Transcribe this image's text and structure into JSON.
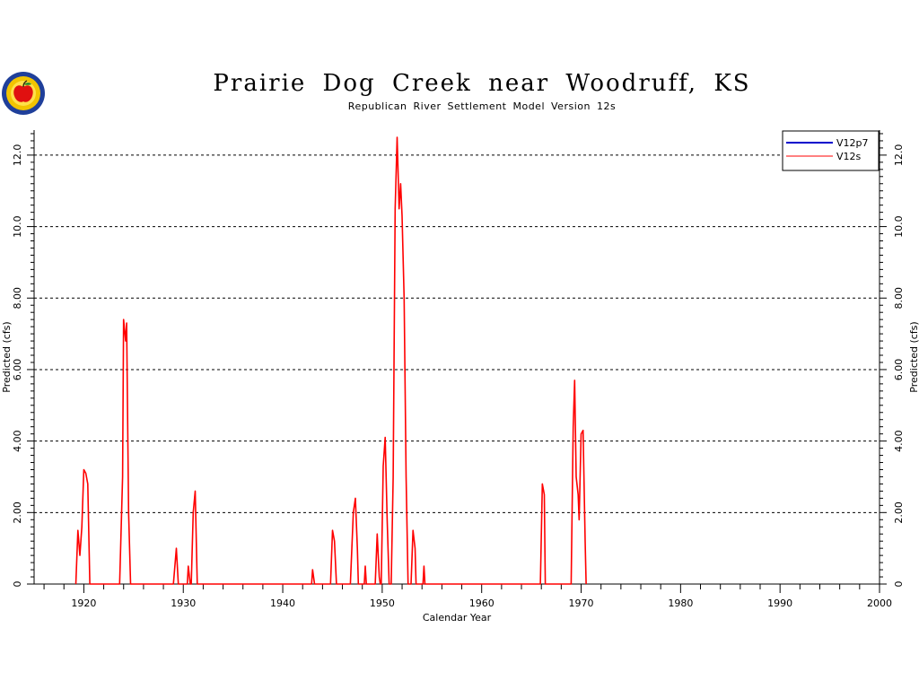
{
  "chart_data": {
    "type": "line",
    "title": "Prairie Dog Creek near Woodruff, KS",
    "subtitle": "Republican River Settlement Model Version 12s",
    "xlabel": "Calendar Year",
    "ylabel": "Predicted  (cfs)",
    "xlim": [
      1915,
      2000
    ],
    "ylim": [
      0,
      12.7
    ],
    "x_ticks": [
      1920,
      1930,
      1940,
      1950,
      1960,
      1970,
      1980,
      1990,
      2000
    ],
    "y_ticks": [
      0,
      2,
      4,
      6,
      8,
      10,
      12
    ],
    "y_tick_labels": [
      "0",
      "2.00",
      "4.00",
      "6.00",
      "8.00",
      "10.0",
      "12.0"
    ],
    "grid": "horizontal dashed",
    "legend_position": "top-right",
    "series": [
      {
        "name": "V12p7",
        "color": "#0000cc",
        "points": []
      },
      {
        "name": "V12s",
        "color": "#ff0000",
        "points": [
          [
            1919.2,
            0
          ],
          [
            1919.4,
            1.5
          ],
          [
            1919.6,
            0.8
          ],
          [
            1919.8,
            1.6
          ],
          [
            1920.0,
            3.2
          ],
          [
            1920.2,
            3.1
          ],
          [
            1920.4,
            2.8
          ],
          [
            1920.6,
            0
          ],
          [
            1923.6,
            0
          ],
          [
            1923.9,
            3.0
          ],
          [
            1924.0,
            7.4
          ],
          [
            1924.2,
            6.8
          ],
          [
            1924.3,
            7.3
          ],
          [
            1924.5,
            2.0
          ],
          [
            1924.7,
            0
          ],
          [
            1929.0,
            0
          ],
          [
            1929.3,
            1.0
          ],
          [
            1929.5,
            0
          ],
          [
            1930.4,
            0
          ],
          [
            1930.5,
            0.5
          ],
          [
            1930.7,
            0
          ],
          [
            1930.8,
            0
          ],
          [
            1931.0,
            2.0
          ],
          [
            1931.2,
            2.6
          ],
          [
            1931.4,
            0
          ],
          [
            1942.9,
            0
          ],
          [
            1943.0,
            0.4
          ],
          [
            1943.2,
            0
          ],
          [
            1944.8,
            0
          ],
          [
            1945.0,
            1.5
          ],
          [
            1945.2,
            1.2
          ],
          [
            1945.4,
            0
          ],
          [
            1946.8,
            0
          ],
          [
            1947.1,
            2.0
          ],
          [
            1947.3,
            2.4
          ],
          [
            1947.5,
            1.0
          ],
          [
            1947.6,
            0
          ],
          [
            1948.2,
            0
          ],
          [
            1948.3,
            0.5
          ],
          [
            1948.4,
            0
          ],
          [
            1949.3,
            0
          ],
          [
            1949.5,
            1.4
          ],
          [
            1949.7,
            0.2
          ],
          [
            1949.8,
            0
          ],
          [
            1949.9,
            0
          ],
          [
            1950.1,
            3.3
          ],
          [
            1950.3,
            4.1
          ],
          [
            1950.5,
            1.8
          ],
          [
            1950.7,
            0
          ],
          [
            1950.9,
            0
          ],
          [
            1951.1,
            3.0
          ],
          [
            1951.3,
            10.5
          ],
          [
            1951.5,
            12.5
          ],
          [
            1951.7,
            10.5
          ],
          [
            1951.85,
            11.2
          ],
          [
            1952.0,
            10.3
          ],
          [
            1952.2,
            8.0
          ],
          [
            1952.4,
            3.0
          ],
          [
            1952.6,
            0
          ],
          [
            1952.9,
            0
          ],
          [
            1953.1,
            1.5
          ],
          [
            1953.3,
            1.0
          ],
          [
            1953.4,
            0
          ],
          [
            1954.1,
            0
          ],
          [
            1954.2,
            0.5
          ],
          [
            1954.3,
            0
          ],
          [
            1965.9,
            0
          ],
          [
            1966.1,
            2.8
          ],
          [
            1966.3,
            2.5
          ],
          [
            1966.4,
            0
          ],
          [
            1969.0,
            0
          ],
          [
            1969.2,
            4.4
          ],
          [
            1969.35,
            5.7
          ],
          [
            1969.5,
            3.0
          ],
          [
            1969.7,
            2.5
          ],
          [
            1969.8,
            1.8
          ],
          [
            1970.0,
            4.2
          ],
          [
            1970.2,
            4.3
          ],
          [
            1970.4,
            1.2
          ],
          [
            1970.5,
            0
          ]
        ]
      }
    ]
  }
}
